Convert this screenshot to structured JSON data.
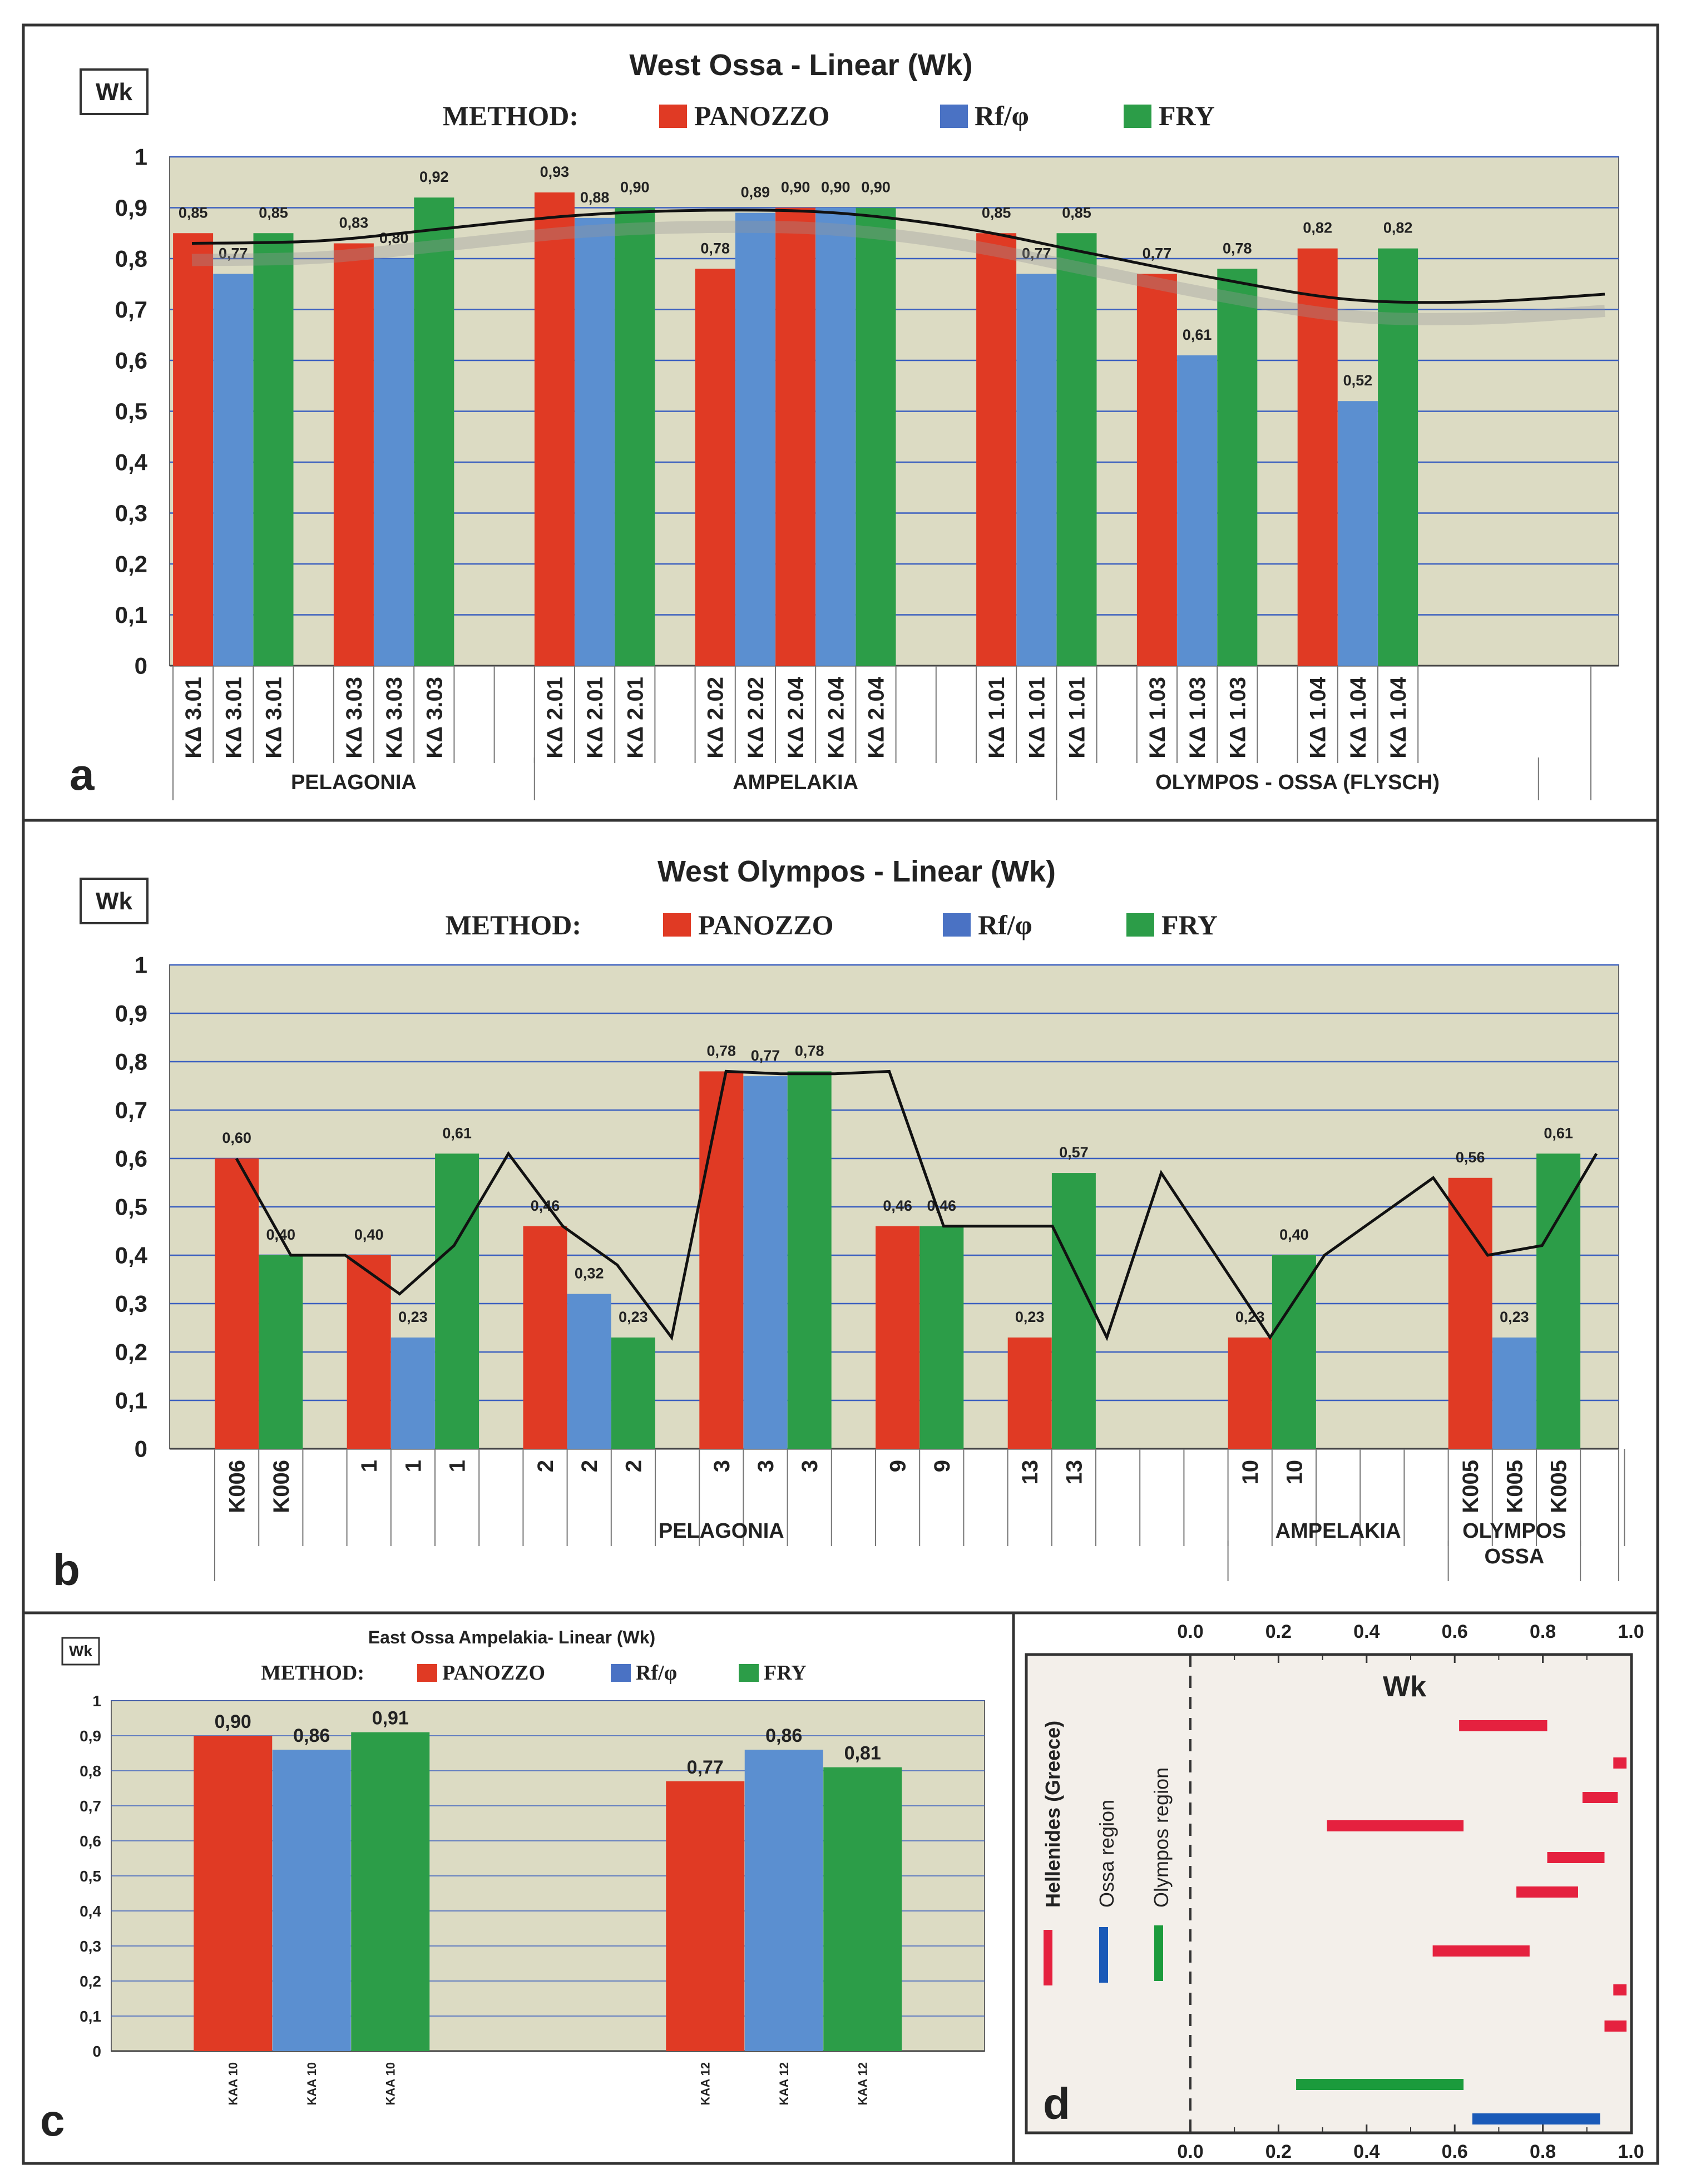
{
  "colors": {
    "panozzo": "#e03a24",
    "rf": "#5b8fd0",
    "fry": "#2c9d48",
    "plot_bg": "#dcdbc3",
    "frame": "#333333",
    "grid": "#3b5fbf"
  },
  "legend": {
    "method_label": "METHOD:",
    "panozzo": "PANOZZO",
    "rf": "Rf/φ",
    "fry": "FRY"
  },
  "panels": {
    "a": {
      "letter": "a",
      "wk_box": "Wk",
      "title": "West Ossa  -  Linear (Wk)"
    },
    "b": {
      "letter": "b",
      "wk_box": "Wk",
      "title": "West Olympos  -  Linear (Wk)"
    },
    "c": {
      "letter": "c",
      "wk_box": "Wk",
      "title": "East Ossa  Ampelakia-  Linear (Wk)"
    },
    "d": {
      "letter": "d",
      "axis_title": "Wk",
      "labels": {
        "hellenides": "Hellenides (Greece)",
        "ossa": "Ossa region",
        "olympos": "Olympos region"
      }
    }
  },
  "chart_data": [
    {
      "id": "a",
      "type": "bar",
      "title": "West Ossa  -  Linear (Wk)",
      "ylabel": "Wk",
      "ylim": [
        0,
        1
      ],
      "yticks": [
        "0",
        "0,1",
        "0,2",
        "0,3",
        "0,4",
        "0,5",
        "0,6",
        "0,7",
        "0,8",
        "0,9",
        "1"
      ],
      "slots": [
        {
          "label": "KΔ 3.01",
          "method": "panozzo",
          "value": 0.85,
          "text": "0,85"
        },
        {
          "label": "KΔ 3.01",
          "method": "rf",
          "value": 0.77,
          "text": "0,77"
        },
        {
          "label": "KΔ 3.01",
          "method": "fry",
          "value": 0.85,
          "text": "0,85"
        },
        {
          "label": "",
          "method": null,
          "value": null,
          "text": ""
        },
        {
          "label": "KΔ 3.03",
          "method": "panozzo",
          "value": 0.83,
          "text": "0,83"
        },
        {
          "label": "KΔ 3.03",
          "method": "rf",
          "value": 0.8,
          "text": "0,80"
        },
        {
          "label": "KΔ 3.03",
          "method": "fry",
          "value": 0.92,
          "text": "0,92"
        },
        {
          "label": "",
          "method": null,
          "value": null,
          "text": ""
        },
        {
          "label": "",
          "method": null,
          "value": null,
          "text": ""
        },
        {
          "label": "KΔ 2.01",
          "method": "panozzo",
          "value": 0.93,
          "text": "0,93"
        },
        {
          "label": "KΔ 2.01",
          "method": "rf",
          "value": 0.88,
          "text": "0,88"
        },
        {
          "label": "KΔ 2.01",
          "method": "fry",
          "value": 0.9,
          "text": "0,90"
        },
        {
          "label": "",
          "method": null,
          "value": null,
          "text": ""
        },
        {
          "label": "KΔ 2.02",
          "method": "panozzo",
          "value": 0.78,
          "text": "0,78"
        },
        {
          "label": "KΔ 2.02",
          "method": "rf",
          "value": 0.89,
          "text": "0,89"
        },
        {
          "label": "KΔ 2.04",
          "method": "panozzo",
          "value": 0.9,
          "text": "0,90"
        },
        {
          "label": "KΔ 2.04",
          "method": "rf",
          "value": 0.9,
          "text": "0,90"
        },
        {
          "label": "KΔ 2.04",
          "method": "fry",
          "value": 0.9,
          "text": "0,90"
        },
        {
          "label": "",
          "method": null,
          "value": null,
          "text": ""
        },
        {
          "label": "",
          "method": null,
          "value": null,
          "text": ""
        },
        {
          "label": "KΔ 1.01",
          "method": "panozzo",
          "value": 0.85,
          "text": "0,85"
        },
        {
          "label": "KΔ 1.01",
          "method": "rf",
          "value": 0.77,
          "text": "0,77"
        },
        {
          "label": "KΔ 1.01",
          "method": "fry",
          "value": 0.85,
          "text": "0,85"
        },
        {
          "label": "",
          "method": null,
          "value": null,
          "text": ""
        },
        {
          "label": "KΔ 1.03",
          "method": "panozzo",
          "value": 0.77,
          "text": "0,77"
        },
        {
          "label": "KΔ 1.03",
          "method": "rf",
          "value": 0.61,
          "text": "0,61"
        },
        {
          "label": "KΔ 1.03",
          "method": "fry",
          "value": 0.78,
          "text": "0,78"
        },
        {
          "label": "",
          "method": null,
          "value": null,
          "text": ""
        },
        {
          "label": "KΔ 1.04",
          "method": "panozzo",
          "value": 0.82,
          "text": "0,82"
        },
        {
          "label": "KΔ 1.04",
          "method": "rf",
          "value": 0.52,
          "text": "0,52"
        },
        {
          "label": "KΔ 1.04",
          "method": "fry",
          "value": 0.82,
          "text": "0,82"
        }
      ],
      "groups": [
        {
          "name": "PELAGONIA",
          "from": 0,
          "to": 9
        },
        {
          "name": "AMPELAKIA",
          "from": 9,
          "to": 22
        },
        {
          "name": "OLYMPOS - OSSA (FLYSCH)",
          "from": 22,
          "to": 34
        }
      ],
      "trend": {
        "kind": "smooth",
        "values": [
          0.83,
          0.835,
          0.86,
          0.885,
          0.895,
          0.89,
          0.86,
          0.81,
          0.76,
          0.72,
          0.715,
          0.73
        ]
      }
    },
    {
      "id": "b",
      "type": "bar",
      "title": "West Olympos  -  Linear (Wk)",
      "ylabel": "Wk",
      "ylim": [
        0,
        1
      ],
      "yticks": [
        "0",
        "0,1",
        "0,2",
        "0,3",
        "0,4",
        "0,5",
        "0,6",
        "0,7",
        "0,8",
        "0,9",
        "1"
      ],
      "slots": [
        {
          "label": "K006",
          "method": "panozzo",
          "value": 0.6,
          "text": "0,60"
        },
        {
          "label": "K006",
          "method": "fry",
          "value": 0.4,
          "text": "0,40"
        },
        {
          "label": "",
          "method": null,
          "value": null,
          "text": ""
        },
        {
          "label": "1",
          "method": "panozzo",
          "value": 0.4,
          "text": "0,40"
        },
        {
          "label": "1",
          "method": "rf",
          "value": 0.23,
          "text": "0,23"
        },
        {
          "label": "1",
          "method": "fry",
          "value": 0.61,
          "text": "0,61"
        },
        {
          "label": "",
          "method": null,
          "value": null,
          "text": ""
        },
        {
          "label": "2",
          "method": "panozzo",
          "value": 0.46,
          "text": "0,46"
        },
        {
          "label": "2",
          "method": "rf",
          "value": 0.32,
          "text": "0,32"
        },
        {
          "label": "2",
          "method": "fry",
          "value": 0.23,
          "text": "0,23"
        },
        {
          "label": "",
          "method": null,
          "value": null,
          "text": ""
        },
        {
          "label": "3",
          "method": "panozzo",
          "value": 0.78,
          "text": "0,78"
        },
        {
          "label": "3",
          "method": "rf",
          "value": 0.77,
          "text": "0,77"
        },
        {
          "label": "3",
          "method": "fry",
          "value": 0.78,
          "text": "0,78"
        },
        {
          "label": "",
          "method": null,
          "value": null,
          "text": ""
        },
        {
          "label": "9",
          "method": "panozzo",
          "value": 0.46,
          "text": "0,46"
        },
        {
          "label": "9",
          "method": "fry",
          "value": 0.46,
          "text": "0,46"
        },
        {
          "label": "",
          "method": null,
          "value": null,
          "text": ""
        },
        {
          "label": "13",
          "method": "panozzo",
          "value": 0.23,
          "text": "0,23"
        },
        {
          "label": "13",
          "method": "fry",
          "value": 0.57,
          "text": "0,57"
        },
        {
          "label": "",
          "method": null,
          "value": null,
          "text": ""
        },
        {
          "label": "",
          "method": null,
          "value": null,
          "text": ""
        },
        {
          "label": "",
          "method": null,
          "value": null,
          "text": ""
        },
        {
          "label": "10",
          "method": "panozzo",
          "value": 0.23,
          "text": "0,23"
        },
        {
          "label": "10",
          "method": "fry",
          "value": 0.4,
          "text": "0,40"
        },
        {
          "label": "",
          "method": null,
          "value": null,
          "text": ""
        },
        {
          "label": "",
          "method": null,
          "value": null,
          "text": ""
        },
        {
          "label": "",
          "method": null,
          "value": null,
          "text": ""
        },
        {
          "label": "K005",
          "method": "panozzo",
          "value": 0.56,
          "text": "0,56"
        },
        {
          "label": "K005",
          "method": "rf",
          "value": 0.23,
          "text": "0,23"
        },
        {
          "label": "K005",
          "method": "fry",
          "value": 0.61,
          "text": "0,61"
        },
        {
          "label": "",
          "method": null,
          "value": null,
          "text": ""
        }
      ],
      "groups": [
        {
          "name": "PELAGONIA",
          "from": 0,
          "to": 23
        },
        {
          "name": "AMPELAKIA",
          "from": 23,
          "to": 28
        },
        {
          "name": "OLYMPOS|OSSA",
          "from": 28,
          "to": 31
        }
      ],
      "trend": {
        "kind": "polyline",
        "values": [
          0.6,
          0.4,
          0.4,
          0.32,
          0.42,
          0.61,
          0.46,
          0.38,
          0.23,
          0.78,
          0.775,
          0.775,
          0.78,
          0.46,
          0.46,
          0.46,
          0.23,
          0.57,
          0.4,
          0.23,
          0.4,
          0.48,
          0.56,
          0.4,
          0.42,
          0.61
        ]
      }
    },
    {
      "id": "c",
      "type": "bar",
      "title": "East Ossa  Ampelakia-  Linear (Wk)",
      "ylabel": "Wk",
      "ylim": [
        0,
        1
      ],
      "yticks": [
        "0",
        "0,1",
        "0,2",
        "0,3",
        "0,4",
        "0,5",
        "0,6",
        "0,7",
        "0,8",
        "0,9",
        "1"
      ],
      "slots": [
        {
          "label": "KAA 10",
          "method": "panozzo",
          "value": 0.9,
          "text": "0,90"
        },
        {
          "label": "KAA 10",
          "method": "rf",
          "value": 0.86,
          "text": "0,86"
        },
        {
          "label": "KAA 10",
          "method": "fry",
          "value": 0.91,
          "text": "0,91"
        },
        {
          "label": "",
          "method": null,
          "value": null,
          "text": ""
        },
        {
          "label": "",
          "method": null,
          "value": null,
          "text": ""
        },
        {
          "label": "",
          "method": null,
          "value": null,
          "text": ""
        },
        {
          "label": "KAA 12",
          "method": "panozzo",
          "value": 0.77,
          "text": "0,77"
        },
        {
          "label": "KAA 12",
          "method": "rf",
          "value": 0.86,
          "text": "0,86"
        },
        {
          "label": "KAA 12",
          "method": "fry",
          "value": 0.81,
          "text": "0,81"
        }
      ]
    },
    {
      "id": "d",
      "type": "range",
      "title": "Wk",
      "xlim": [
        0,
        1
      ],
      "xticks": [
        "0.0",
        "0.2",
        "0.4",
        "0.6",
        "0.8",
        "1.0"
      ],
      "ranges": [
        {
          "region": "hellenides",
          "from": 0.61,
          "to": 0.81
        },
        {
          "region": "hellenides",
          "from": 0.96,
          "to": 0.99
        },
        {
          "region": "hellenides",
          "from": 0.89,
          "to": 0.97
        },
        {
          "region": "hellenides",
          "from": 0.31,
          "to": 0.62
        },
        {
          "region": "hellenides",
          "from": 0.81,
          "to": 0.94
        },
        {
          "region": "hellenides",
          "from": 0.74,
          "to": 0.88
        },
        {
          "region": "hellenides",
          "from": 0.55,
          "to": 0.77
        },
        {
          "region": "hellenides",
          "from": 0.96,
          "to": 0.99
        },
        {
          "region": "hellenides",
          "from": 0.94,
          "to": 0.99
        },
        {
          "region": "olympos",
          "from": 0.24,
          "to": 0.62
        },
        {
          "region": "ossa",
          "from": 0.64,
          "to": 0.93
        }
      ]
    }
  ]
}
